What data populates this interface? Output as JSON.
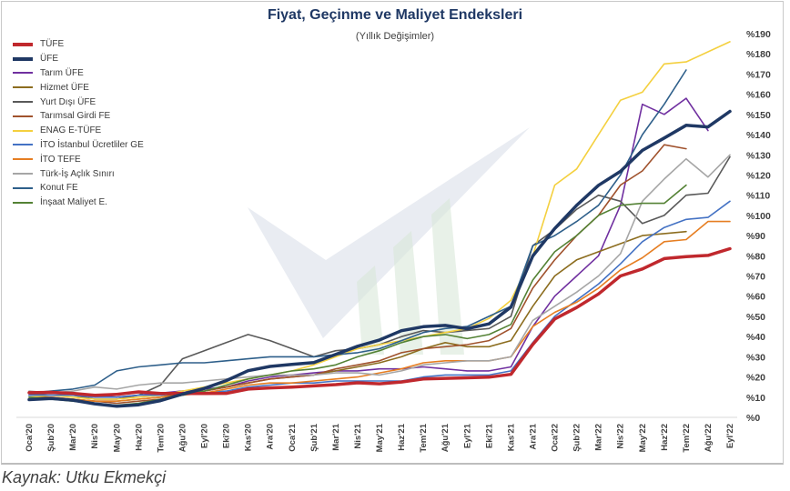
{
  "chart_data": {
    "type": "line",
    "title": "Fiyat, Geçinme ve Maliyet Endeksleri",
    "subtitle": "(Yıllık Değişimler)",
    "ylim": [
      0,
      190
    ],
    "yticks": [
      "%0",
      "%10",
      "%20",
      "%30",
      "%40",
      "%50",
      "%60",
      "%70",
      "%80",
      "%90",
      "%100",
      "%110",
      "%120",
      "%130",
      "%140",
      "%150",
      "%160",
      "%170",
      "%180",
      "%190"
    ],
    "categories": [
      "Oca'20",
      "Şub'20",
      "Mar'20",
      "Nis'20",
      "May'20",
      "Haz'20",
      "Tem'20",
      "Ağu'20",
      "Eyl'20",
      "Eki'20",
      "Kas'20",
      "Ara'20",
      "Oca'21",
      "Şub'21",
      "Mar'21",
      "Nis'21",
      "May'21",
      "Haz'21",
      "Tem'21",
      "Ağu'21",
      "Eyl'21",
      "Eki'21",
      "Kas'21",
      "Ara'21",
      "Oca'22",
      "Şub'22",
      "Mar'22",
      "Nis'22",
      "May'22",
      "Haz'22",
      "Tem'22",
      "Ağu'22",
      "Eyl'22"
    ],
    "legend_position": "top-left",
    "series": [
      {
        "name": "TÜFE",
        "color": "#c0282d",
        "bold": true,
        "values": [
          12.2,
          12.4,
          11.9,
          10.9,
          11.4,
          12.6,
          11.8,
          11.8,
          11.8,
          11.9,
          14.0,
          14.6,
          15.0,
          15.6,
          16.2,
          17.1,
          16.6,
          17.5,
          19.0,
          19.3,
          19.6,
          19.9,
          21.3,
          36.1,
          48.7,
          54.4,
          61.1,
          70.0,
          73.5,
          78.6,
          79.6,
          80.2,
          83.5
        ]
      },
      {
        "name": "ÜFE",
        "color": "#1f3864",
        "bold": true,
        "values": [
          8.8,
          9.3,
          8.5,
          6.7,
          5.5,
          6.2,
          8.3,
          11.5,
          14.3,
          18.2,
          23.1,
          25.2,
          26.2,
          27.1,
          31.2,
          35.2,
          38.3,
          42.9,
          44.9,
          45.5,
          43.9,
          46.3,
          54.6,
          79.9,
          93.5,
          105.0,
          114.9,
          121.8,
          132.2,
          138.3,
          144.6,
          143.8,
          151.5
        ]
      },
      {
        "name": "Tarım ÜFE",
        "color": "#7030a0",
        "values": [
          11,
          12,
          12,
          11,
          10,
          11,
          12,
          13,
          14,
          15,
          18,
          20,
          21,
          22,
          23,
          23,
          24,
          24,
          25,
          24,
          23,
          23,
          25,
          45,
          60,
          70,
          80,
          105,
          155,
          150,
          158,
          142,
          null
        ]
      },
      {
        "name": "Hizmet ÜFE",
        "color": "#8c6d1f",
        "values": [
          10,
          10,
          9,
          8,
          8,
          9,
          10,
          12,
          13,
          15,
          17,
          19,
          20,
          21,
          23,
          25,
          27,
          30,
          34,
          37,
          35,
          35,
          38,
          55,
          70,
          78,
          82,
          86,
          90,
          91,
          92,
          null,
          null
        ]
      },
      {
        "name": "Yurt Dışı ÜFE",
        "color": "#595959",
        "values": [
          11,
          12,
          11,
          9,
          9,
          11,
          16,
          29,
          33,
          37,
          41,
          38,
          34,
          30,
          33,
          34,
          36,
          40,
          43,
          42,
          43,
          44,
          50,
          85,
          93,
          103,
          110,
          107,
          96,
          100,
          110,
          111,
          129
        ]
      },
      {
        "name": "Tarımsal Girdi FE",
        "color": "#a0522d",
        "values": [
          9,
          9,
          9,
          8,
          7,
          8,
          9,
          11,
          13,
          15,
          17,
          19,
          20,
          21,
          24,
          26,
          28,
          32,
          34,
          35,
          36,
          38,
          44,
          64,
          78,
          90,
          100,
          115,
          122,
          135,
          133,
          null,
          null
        ]
      },
      {
        "name": "ENAG E-TÜFE",
        "color": "#f4d03f",
        "values": [
          10,
          11,
          10,
          9,
          9,
          10,
          11,
          13,
          15,
          17,
          19,
          21,
          23,
          26,
          30,
          34,
          36,
          38,
          40,
          42,
          44,
          49,
          58,
          80,
          115,
          123,
          140,
          157,
          161,
          175,
          176,
          181,
          186
        ]
      },
      {
        "name": "İTO İstanbul Ücretliler GE",
        "color": "#4472c4",
        "values": [
          11,
          11,
          11,
          10,
          10,
          11,
          11,
          12,
          12,
          13,
          15,
          16,
          17,
          17,
          18,
          18,
          18,
          18,
          20,
          21,
          21,
          21,
          23,
          37,
          50,
          58,
          66,
          76,
          87,
          94,
          98,
          99,
          107
        ]
      },
      {
        "name": "İTO TEFE",
        "color": "#e67e22",
        "values": [
          9,
          10,
          9,
          8,
          8,
          9,
          10,
          11,
          12,
          14,
          16,
          17,
          17,
          18,
          19,
          20,
          22,
          24,
          27,
          28,
          28,
          28,
          30,
          45,
          52,
          57,
          64,
          73,
          79,
          87,
          88,
          97,
          97
        ]
      },
      {
        "name": "Türk-İş Açlık Sınırı",
        "color": "#a6a6a6",
        "values": [
          13,
          12,
          13,
          15,
          14,
          16,
          17,
          17,
          18,
          19,
          20,
          21,
          21,
          21,
          22,
          22,
          21,
          23,
          26,
          27,
          28,
          28,
          30,
          48,
          55,
          62,
          70,
          81,
          107,
          118,
          128,
          119,
          130
        ]
      },
      {
        "name": "Konut FE",
        "color": "#2e5f8a",
        "values": [
          12,
          13,
          14,
          16,
          23,
          25,
          26,
          27,
          27,
          28,
          29,
          30,
          30,
          30,
          31,
          32,
          34,
          38,
          42,
          44,
          45,
          50,
          55,
          85,
          90,
          97,
          105,
          120,
          140,
          155,
          172,
          null,
          null
        ]
      },
      {
        "name": "İnşaat Maliyet E.",
        "color": "#548235",
        "values": [
          10,
          9,
          8,
          7,
          6,
          7,
          9,
          11,
          13,
          16,
          19,
          21,
          23,
          24,
          26,
          30,
          33,
          37,
          40,
          41,
          39,
          41,
          46,
          68,
          82,
          90,
          100,
          105,
          106,
          106,
          115,
          null,
          null
        ]
      }
    ]
  },
  "source_label": "Kaynak: Utku Ekmekçi"
}
